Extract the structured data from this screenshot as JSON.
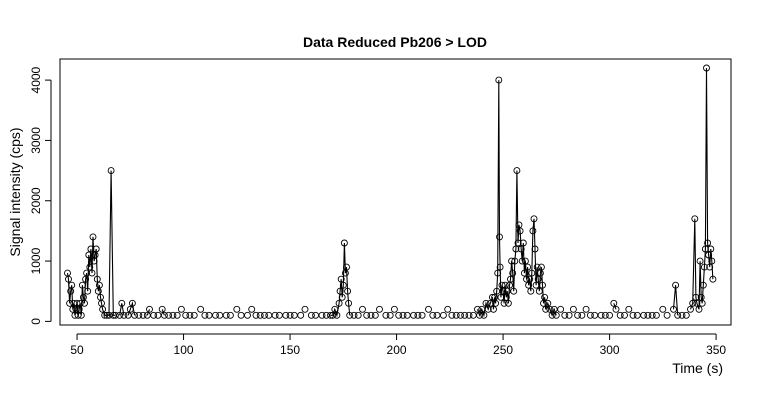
{
  "chart_data": {
    "type": "scatter",
    "title": "Data Reduced Pb206 > LOD",
    "xlabel": "Time (s)",
    "ylabel": "Signal intensity (cps)",
    "xlim": [
      42,
      357
    ],
    "ylim": [
      -60,
      4350
    ],
    "xticks": [
      50,
      100,
      150,
      200,
      250,
      300,
      350
    ],
    "yticks": [
      0,
      1000,
      2000,
      3000,
      4000
    ],
    "grid": false,
    "legend": "none",
    "marker": "open-circle",
    "color": "#000000",
    "series": [
      {
        "points": [
          [
            45.5,
            800
          ],
          [
            46,
            700
          ],
          [
            46.5,
            300
          ],
          [
            47,
            500
          ],
          [
            47.5,
            600
          ],
          [
            48,
            200
          ],
          [
            48.5,
            300
          ],
          [
            49,
            100
          ],
          [
            49.5,
            200
          ],
          [
            50,
            300
          ],
          [
            50.5,
            100
          ],
          [
            51,
            200
          ],
          [
            51.5,
            300
          ],
          [
            52,
            100
          ],
          [
            52.5,
            600
          ],
          [
            53,
            400
          ],
          [
            53.5,
            300
          ],
          [
            54,
            700
          ],
          [
            54.5,
            800
          ],
          [
            55,
            500
          ],
          [
            55.5,
            1100
          ],
          [
            56,
            900
          ],
          [
            56.5,
            1200
          ],
          [
            57,
            800
          ],
          [
            57.5,
            1400
          ],
          [
            58,
            1000
          ],
          [
            58.5,
            1100
          ],
          [
            59,
            1200
          ],
          [
            59.5,
            700
          ],
          [
            60,
            500
          ],
          [
            60.5,
            600
          ],
          [
            61,
            400
          ],
          [
            61.5,
            300
          ],
          [
            62,
            200
          ],
          [
            63,
            100
          ],
          [
            64,
            100
          ],
          [
            65,
            100
          ],
          [
            66,
            2500
          ],
          [
            67,
            100
          ],
          [
            68,
            100
          ],
          [
            70,
            100
          ],
          [
            71,
            300
          ],
          [
            72,
            100
          ],
          [
            74,
            100
          ],
          [
            75,
            200
          ],
          [
            76,
            300
          ],
          [
            77,
            100
          ],
          [
            79,
            100
          ],
          [
            81,
            100
          ],
          [
            83,
            100
          ],
          [
            84,
            200
          ],
          [
            86,
            100
          ],
          [
            88,
            100
          ],
          [
            90,
            200
          ],
          [
            91,
            100
          ],
          [
            93,
            100
          ],
          [
            95,
            100
          ],
          [
            97,
            100
          ],
          [
            99,
            200
          ],
          [
            101,
            100
          ],
          [
            103,
            100
          ],
          [
            105,
            100
          ],
          [
            108,
            200
          ],
          [
            110,
            100
          ],
          [
            112,
            100
          ],
          [
            115,
            100
          ],
          [
            117,
            100
          ],
          [
            120,
            100
          ],
          [
            122,
            100
          ],
          [
            125,
            200
          ],
          [
            127,
            100
          ],
          [
            130,
            100
          ],
          [
            132,
            200
          ],
          [
            134,
            100
          ],
          [
            136,
            100
          ],
          [
            138,
            100
          ],
          [
            140,
            100
          ],
          [
            143,
            100
          ],
          [
            145,
            100
          ],
          [
            148,
            100
          ],
          [
            150,
            100
          ],
          [
            152,
            100
          ],
          [
            155,
            100
          ],
          [
            157,
            200
          ],
          [
            160,
            100
          ],
          [
            162,
            100
          ],
          [
            165,
            100
          ],
          [
            167,
            100
          ],
          [
            169,
            100
          ],
          [
            170,
            100
          ],
          [
            171,
            200
          ],
          [
            172,
            100
          ],
          [
            173,
            300
          ],
          [
            173.5,
            500
          ],
          [
            174,
            700
          ],
          [
            174.5,
            400
          ],
          [
            175,
            600
          ],
          [
            175.5,
            1300
          ],
          [
            176,
            800
          ],
          [
            176.5,
            900
          ],
          [
            177,
            500
          ],
          [
            177.5,
            300
          ],
          [
            178,
            100
          ],
          [
            180,
            100
          ],
          [
            182,
            100
          ],
          [
            184,
            200
          ],
          [
            186,
            100
          ],
          [
            188,
            100
          ],
          [
            190,
            100
          ],
          [
            192,
            200
          ],
          [
            195,
            100
          ],
          [
            197,
            100
          ],
          [
            199,
            200
          ],
          [
            201,
            100
          ],
          [
            203,
            100
          ],
          [
            205,
            100
          ],
          [
            208,
            100
          ],
          [
            210,
            100
          ],
          [
            212,
            100
          ],
          [
            215,
            200
          ],
          [
            217,
            100
          ],
          [
            219,
            100
          ],
          [
            222,
            100
          ],
          [
            224,
            200
          ],
          [
            226,
            100
          ],
          [
            228,
            100
          ],
          [
            230,
            100
          ],
          [
            232,
            100
          ],
          [
            234,
            100
          ],
          [
            236,
            100
          ],
          [
            238,
            200
          ],
          [
            239,
            100
          ],
          [
            240,
            200
          ],
          [
            241,
            100
          ],
          [
            242,
            300
          ],
          [
            243,
            200
          ],
          [
            244,
            300
          ],
          [
            245,
            400
          ],
          [
            245.5,
            200
          ],
          [
            246,
            400
          ],
          [
            246.5,
            300
          ],
          [
            247,
            500
          ],
          [
            247.5,
            800
          ],
          [
            248,
            4000
          ],
          [
            248.3,
            1400
          ],
          [
            248.6,
            900
          ],
          [
            249,
            400
          ],
          [
            249.5,
            600
          ],
          [
            250,
            500
          ],
          [
            250.5,
            300
          ],
          [
            251,
            600
          ],
          [
            251.5,
            400
          ],
          [
            252,
            500
          ],
          [
            252.5,
            300
          ],
          [
            253,
            600
          ],
          [
            253.5,
            700
          ],
          [
            254,
            1000
          ],
          [
            254.5,
            800
          ],
          [
            255,
            500
          ],
          [
            255.5,
            1000
          ],
          [
            256,
            1200
          ],
          [
            256.5,
            2500
          ],
          [
            257,
            1300
          ],
          [
            257.5,
            1600
          ],
          [
            258,
            1500
          ],
          [
            258.5,
            1200
          ],
          [
            259,
            1000
          ],
          [
            259.5,
            1300
          ],
          [
            260,
            800
          ],
          [
            260.5,
            1000
          ],
          [
            261,
            700
          ],
          [
            261.5,
            900
          ],
          [
            262,
            600
          ],
          [
            262.5,
            700
          ],
          [
            263,
            500
          ],
          [
            263.5,
            800
          ],
          [
            264,
            1500
          ],
          [
            264.5,
            1700
          ],
          [
            265,
            1200
          ],
          [
            265.5,
            600
          ],
          [
            266,
            900
          ],
          [
            266.5,
            700
          ],
          [
            267,
            500
          ],
          [
            267.5,
            800
          ],
          [
            268,
            900
          ],
          [
            268.5,
            600
          ],
          [
            269,
            300
          ],
          [
            269.5,
            400
          ],
          [
            270,
            200
          ],
          [
            271,
            300
          ],
          [
            272,
            200
          ],
          [
            273,
            100
          ],
          [
            274,
            200
          ],
          [
            275,
            100
          ],
          [
            277,
            200
          ],
          [
            279,
            100
          ],
          [
            281,
            100
          ],
          [
            283,
            200
          ],
          [
            285,
            100
          ],
          [
            287,
            100
          ],
          [
            289,
            200
          ],
          [
            291,
            100
          ],
          [
            293,
            100
          ],
          [
            296,
            100
          ],
          [
            298,
            100
          ],
          [
            300,
            100
          ],
          [
            302,
            300
          ],
          [
            303,
            200
          ],
          [
            305,
            100
          ],
          [
            307,
            100
          ],
          [
            309,
            200
          ],
          [
            311,
            100
          ],
          [
            313,
            100
          ],
          [
            316,
            100
          ],
          [
            318,
            100
          ],
          [
            320,
            100
          ],
          [
            322,
            100
          ],
          [
            325,
            200
          ],
          [
            327,
            100
          ],
          [
            330,
            200
          ],
          [
            331,
            600
          ],
          [
            332,
            100
          ],
          [
            334,
            100
          ],
          [
            336,
            100
          ],
          [
            338,
            200
          ],
          [
            339,
            300
          ],
          [
            340,
            1700
          ],
          [
            340.5,
            400
          ],
          [
            341,
            300
          ],
          [
            342,
            200
          ],
          [
            342.5,
            1000
          ],
          [
            343,
            400
          ],
          [
            343.5,
            300
          ],
          [
            344,
            600
          ],
          [
            344.5,
            900
          ],
          [
            345,
            1200
          ],
          [
            345.5,
            4200
          ],
          [
            346,
            1300
          ],
          [
            346.5,
            1100
          ],
          [
            347,
            900
          ],
          [
            347.5,
            1200
          ],
          [
            348,
            1000
          ],
          [
            348.5,
            700
          ]
        ]
      }
    ]
  }
}
